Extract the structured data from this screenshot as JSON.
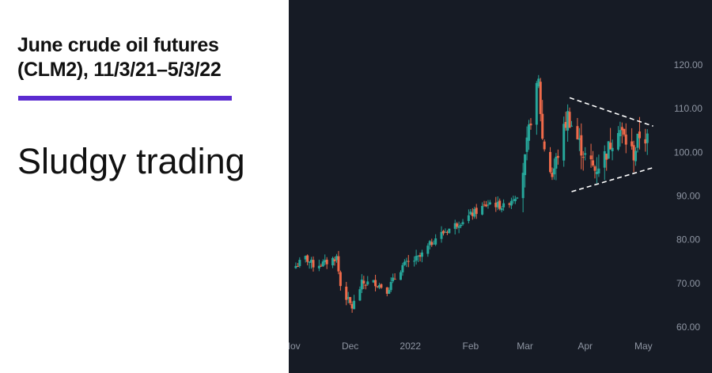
{
  "header": {
    "title_lines": [
      "June crude oil futures",
      "(CLM2), 11/3/21–5/3/22"
    ],
    "subtitle": "Sludgy trading"
  },
  "colors": {
    "accent": "#5b2bd0",
    "chart_bg": "#161b25",
    "up": "#26a69a",
    "down": "#ef6a4a",
    "trendline": "#ffffff",
    "axis_text": "#8e95a2"
  },
  "chart_data": {
    "type": "candlestick",
    "title": "June crude oil futures (CLM2), 11/3/21–5/3/22",
    "subtitle": "Sludgy trading",
    "y_axis_side": "right",
    "ylim": [
      58,
      124
    ],
    "yticks": [
      "60.00",
      "70.00",
      "80.00",
      "90.00",
      "100.00",
      "110.00",
      "120.00"
    ],
    "xlim": [
      "2021-11-01",
      "2022-05-09"
    ],
    "xticks": [
      {
        "date": "2021-11-01",
        "label": "Nov"
      },
      {
        "date": "2021-12-01",
        "label": "Dec"
      },
      {
        "date": "2022-01-01",
        "label": "2022"
      },
      {
        "date": "2022-02-01",
        "label": "Feb"
      },
      {
        "date": "2022-03-01",
        "label": "Mar"
      },
      {
        "date": "2022-04-01",
        "label": "Apr"
      },
      {
        "date": "2022-05-01",
        "label": "May"
      }
    ],
    "grid": false,
    "legend": "none",
    "anchors": [
      {
        "date": "2021-11-03",
        "price": 74.0
      },
      {
        "date": "2021-11-08",
        "price": 75.8
      },
      {
        "date": "2021-11-12",
        "price": 74.2
      },
      {
        "date": "2021-11-18",
        "price": 74.6
      },
      {
        "date": "2021-11-24",
        "price": 76.0
      },
      {
        "date": "2021-11-26",
        "price": 69.5
      },
      {
        "date": "2021-11-30",
        "price": 66.0
      },
      {
        "date": "2021-12-02",
        "price": 64.5
      },
      {
        "date": "2021-12-07",
        "price": 70.0
      },
      {
        "date": "2021-12-14",
        "price": 70.2
      },
      {
        "date": "2021-12-20",
        "price": 68.5
      },
      {
        "date": "2021-12-28",
        "price": 74.0
      },
      {
        "date": "2022-01-06",
        "price": 76.0
      },
      {
        "date": "2022-01-14",
        "price": 80.5
      },
      {
        "date": "2022-01-21",
        "price": 82.5
      },
      {
        "date": "2022-01-28",
        "price": 84.5
      },
      {
        "date": "2022-02-04",
        "price": 86.5
      },
      {
        "date": "2022-02-11",
        "price": 88.5
      },
      {
        "date": "2022-02-18",
        "price": 87.5
      },
      {
        "date": "2022-02-25",
        "price": 90.5
      },
      {
        "date": "2022-03-01",
        "price": 98.0
      },
      {
        "date": "2022-03-04",
        "price": 108.0
      },
      {
        "date": "2022-03-08",
        "price": 116.0
      },
      {
        "date": "2022-03-10",
        "price": 103.0
      },
      {
        "date": "2022-03-15",
        "price": 94.5
      },
      {
        "date": "2022-03-17",
        "price": 98.0
      },
      {
        "date": "2022-03-23",
        "price": 108.5
      },
      {
        "date": "2022-03-28",
        "price": 103.0
      },
      {
        "date": "2022-04-01",
        "price": 99.0
      },
      {
        "date": "2022-04-06",
        "price": 96.0
      },
      {
        "date": "2022-04-12",
        "price": 100.0
      },
      {
        "date": "2022-04-18",
        "price": 106.0
      },
      {
        "date": "2022-04-22",
        "price": 102.5
      },
      {
        "date": "2022-04-26",
        "price": 99.5
      },
      {
        "date": "2022-04-29",
        "price": 104.0
      },
      {
        "date": "2022-05-03",
        "price": 103.0
      }
    ],
    "trendlines": [
      {
        "from": {
          "date": "2022-03-24",
          "price": 112.5
        },
        "to": {
          "date": "2022-05-06",
          "price": 106.0
        }
      },
      {
        "from": {
          "date": "2022-03-25",
          "price": 91.0
        },
        "to": {
          "date": "2022-05-06",
          "price": 96.5
        }
      }
    ]
  }
}
